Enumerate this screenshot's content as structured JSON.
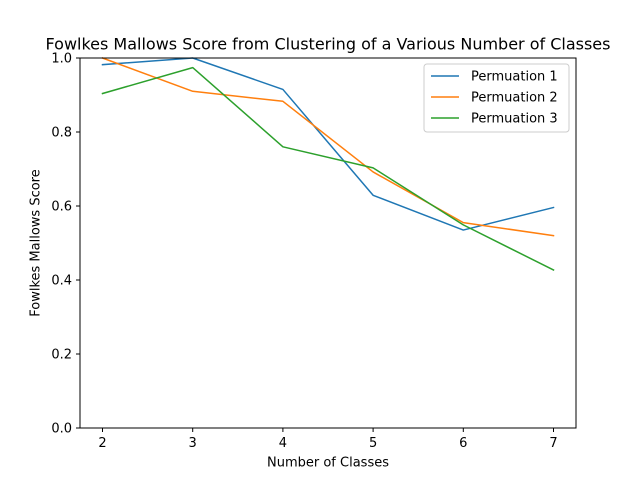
{
  "chart_data": {
    "type": "line",
    "title": "Fowlkes Mallows Score from Clustering of a Various Number of Classes",
    "xlabel": "Number of Classes",
    "ylabel": "Fowlkes Mallows Score",
    "x": [
      2,
      3,
      4,
      5,
      6,
      7
    ],
    "x_ticks": [
      "2",
      "3",
      "4",
      "5",
      "6",
      "7"
    ],
    "y_ticks": [
      "0.0",
      "0.2",
      "0.4",
      "0.6",
      "0.8",
      "1.0"
    ],
    "ylim": [
      0,
      1
    ],
    "grid": false,
    "legend_position": "top-right",
    "series": [
      {
        "name": "Permuation 1",
        "color": "#1f77b4",
        "values": [
          0.982,
          1.0,
          0.915,
          0.629,
          0.535,
          0.596
        ]
      },
      {
        "name": "Permuation 2",
        "color": "#ff7f0e",
        "values": [
          1.0,
          0.91,
          0.883,
          0.692,
          0.555,
          0.52
        ]
      },
      {
        "name": "Permuation 3",
        "color": "#2ca02c",
        "values": [
          0.904,
          0.974,
          0.76,
          0.703,
          0.549,
          0.427
        ]
      }
    ]
  }
}
